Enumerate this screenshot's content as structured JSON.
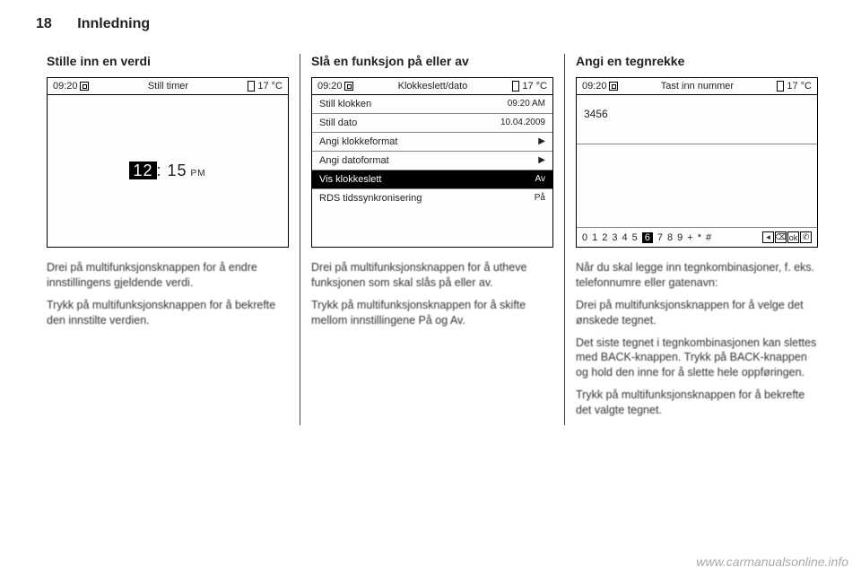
{
  "page": {
    "number": "18",
    "section": "Innledning"
  },
  "col1": {
    "heading": "Stille inn en verdi",
    "screen": {
      "time": "09:20",
      "title": "Still timer",
      "temp": "17 °C",
      "selHour": "12",
      "rest": ": 15",
      "pm": "PM"
    },
    "p1": "Drei på multifunksjonsknappen for å endre innstillingens gjeldende verdi.",
    "p2": "Trykk på multifunksjonsknappen for å bekrefte den innstilte verdien."
  },
  "col2": {
    "heading": "Slå en funksjon på eller av",
    "screen": {
      "time": "09:20",
      "title": "Klokkeslett/dato",
      "temp": "17 °C",
      "rows": [
        {
          "label": "Still klokken",
          "value": "09:20 AM",
          "sel": false
        },
        {
          "label": "Still dato",
          "value": "10.04.2009",
          "sel": false
        },
        {
          "label": "Angi klokkeformat",
          "value": "▶",
          "sel": false
        },
        {
          "label": "Angi datoformat",
          "value": "▶",
          "sel": false
        },
        {
          "label": "Vis klokkeslett",
          "value": "Av",
          "sel": true
        },
        {
          "label": "RDS tidssynkronisering",
          "value": "På",
          "sel": false
        }
      ]
    },
    "p1": "Drei på multifunksjonsknappen for å utheve funksjonen som skal slås på eller av.",
    "p2": "Trykk på multifunksjonsknappen for å skifte mellom innstillingene På og Av."
  },
  "col3": {
    "heading": "Angi en tegnrekke",
    "screen": {
      "time": "09:20",
      "title": "Tast inn nummer",
      "temp": "17 °C",
      "entered": "3456",
      "digits": [
        "0",
        "1",
        "2",
        "3",
        "4",
        "5",
        "6",
        "7",
        "8",
        "9",
        "+",
        "*",
        "#"
      ],
      "selIndex": 6,
      "icons": [
        "◂",
        "⌫",
        "ok",
        "✆"
      ]
    },
    "p1": "Når du skal legge inn tegnkombinasjoner, f. eks. telefonnumre eller gatenavn:",
    "p2": "Drei på multifunksjonsknappen for å velge det ønskede tegnet.",
    "p3": "Det siste tegnet i tegnkombinasjonen kan slettes med BACK-knappen. Trykk på BACK-knappen og hold den inne for å slette hele oppføringen.",
    "p4": "Trykk på multifunksjonsknappen for å bekrefte det valgte tegnet."
  },
  "watermark": "www.carmanualsonline.info"
}
